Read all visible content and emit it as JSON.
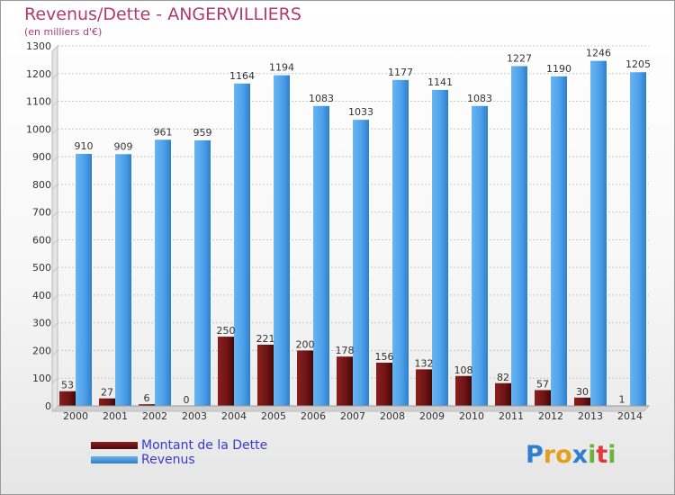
{
  "title": "Revenus/Dette - ANGERVILLIERS",
  "subtitle": "(en milliers d'€)",
  "logo": {
    "letters": [
      "P",
      "r",
      "o",
      "x",
      "i",
      "t",
      "i"
    ],
    "colors": [
      "#2f7fd0",
      "#e2a020",
      "#e2a020",
      "#2f7fd0",
      "#6cb33c",
      "#e23a3a",
      "#6cb33c"
    ]
  },
  "colors": {
    "dette": "#6e1414",
    "revenus": "#4a9ee8",
    "title": "#b03a6c",
    "legend_text": "#3a3ad0"
  },
  "chart_data": {
    "type": "bar",
    "categories": [
      "2000",
      "2001",
      "2002",
      "2003",
      "2004",
      "2005",
      "2006",
      "2007",
      "2008",
      "2009",
      "2010",
      "2011",
      "2012",
      "2013",
      "2014"
    ],
    "series": [
      {
        "name": "Montant de la Dette",
        "values": [
          53,
          27,
          6,
          0,
          250,
          221,
          200,
          178,
          156,
          132,
          108,
          82,
          57,
          30,
          1
        ]
      },
      {
        "name": "Revenus",
        "values": [
          910,
          909,
          961,
          959,
          1164,
          1194,
          1083,
          1033,
          1177,
          1141,
          1083,
          1227,
          1190,
          1246,
          1205
        ]
      }
    ],
    "yticks": [
      0,
      100,
      200,
      300,
      400,
      500,
      600,
      700,
      800,
      900,
      1000,
      1100,
      1200,
      1300
    ],
    "ylim": [
      0,
      1300
    ],
    "grid": true,
    "legend": "bottom-left"
  }
}
